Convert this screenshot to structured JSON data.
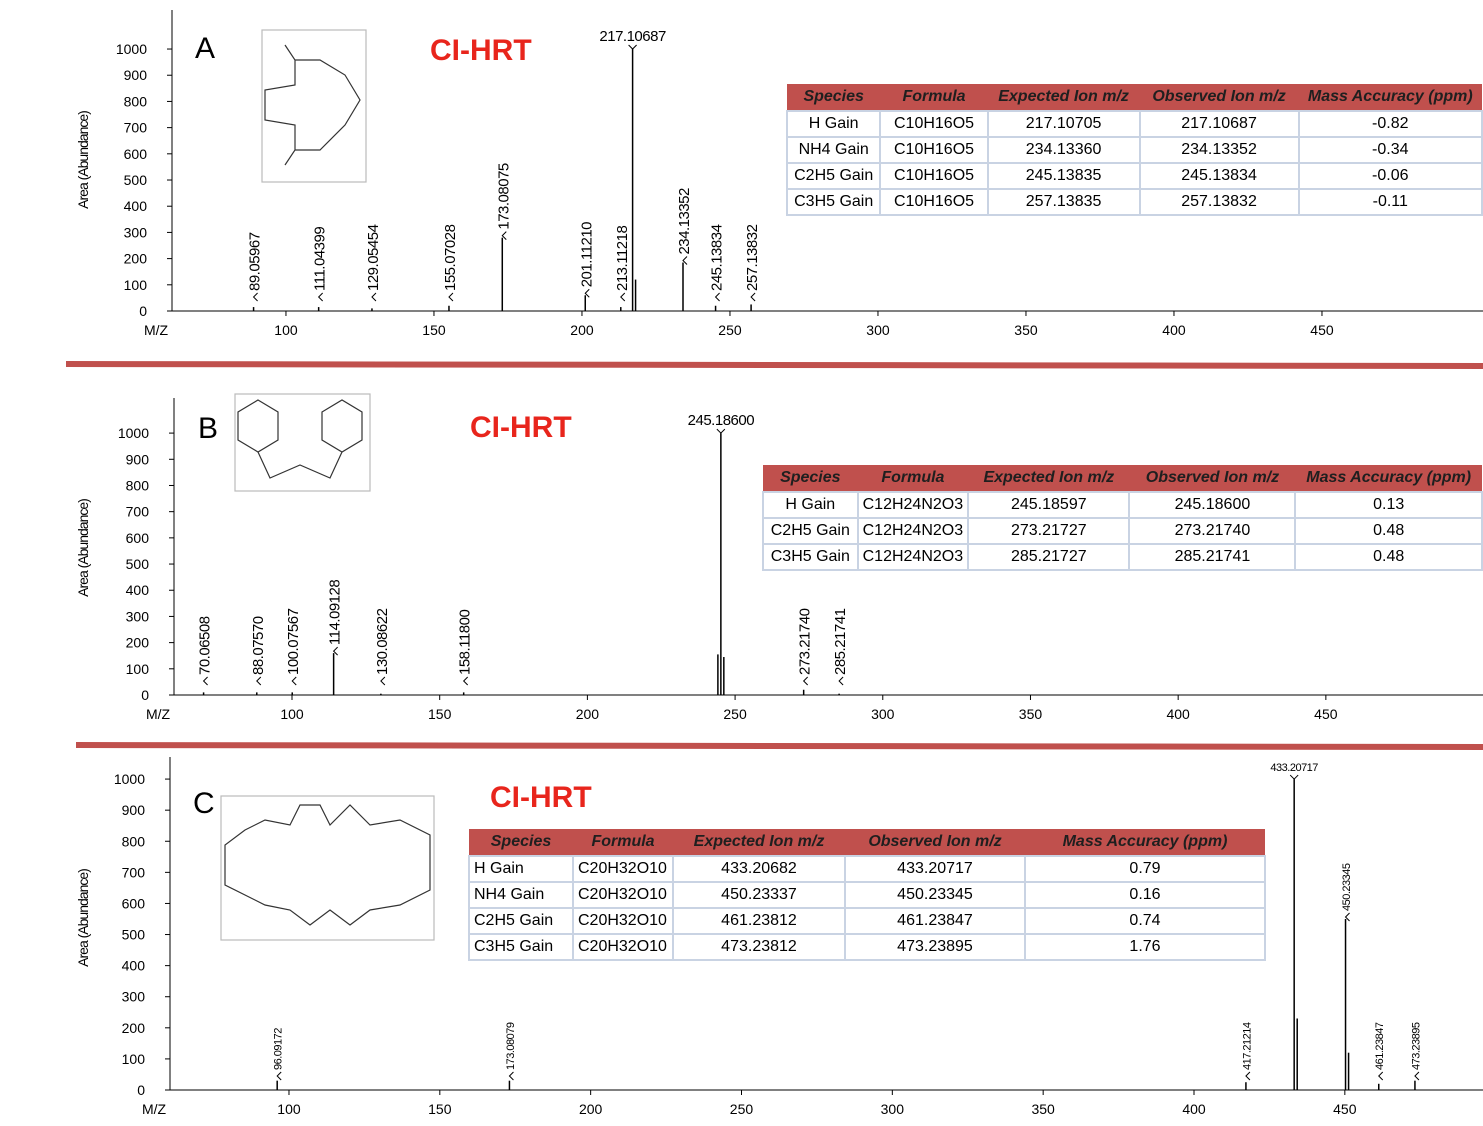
{
  "chart_data": [
    {
      "type": "bar",
      "panel": "A",
      "title": "CI-HRT",
      "x_label": "M/Z",
      "y_label": "Area (Abundance)",
      "color": "#000000",
      "x": [
        89.05967,
        111.04399,
        129.05454,
        155.07028,
        173.08075,
        201.1121,
        213.11218,
        217.10687,
        218.11,
        234.13352,
        245.13834,
        257.13832
      ],
      "x_labels": [
        "89.05967",
        "111.04399",
        "129.05454",
        "155.07028",
        "173.08075",
        "201.11210",
        "213.11218",
        "217.10687",
        null,
        "234.13352",
        "245.13834",
        "257.13832"
      ],
      "values": [
        15,
        15,
        10,
        20,
        280,
        60,
        15,
        1000,
        120,
        185,
        20,
        25
      ],
      "xlim": [
        61.5,
        504.4
      ],
      "ylim": [
        0,
        1149
      ],
      "xticks": [
        100,
        150,
        200,
        250,
        300,
        350,
        400,
        450
      ],
      "yticks": [
        0,
        100,
        200,
        300,
        400,
        500,
        600,
        700,
        800,
        900,
        1000
      ],
      "table": {
        "columns": [
          "Species",
          "Formula",
          "Expected Ion m/z",
          "Observed Ion m/z",
          "Mass Accuracy (ppm)"
        ],
        "rows": [
          [
            "H Gain",
            "C10H16O5",
            "217.10705",
            "217.10687",
            "-0.82"
          ],
          [
            "NH4 Gain",
            "C10H16O5",
            "234.13360",
            "234.13352",
            "-0.34"
          ],
          [
            "C2H5 Gain",
            "C10H16O5",
            "245.13835",
            "245.13834",
            "-0.06"
          ],
          [
            "C3H5 Gain",
            "C10H16O5",
            "257.13835",
            "257.13832",
            "-0.11"
          ]
        ]
      }
    },
    {
      "type": "bar",
      "panel": "B",
      "title": "CI-HRT",
      "x_label": "M/Z",
      "y_label": "Area (Abundance)",
      "color": "#000000",
      "x": [
        70.06508,
        88.0757,
        100.07567,
        114.09128,
        130.08622,
        158.118,
        244.18,
        245.186,
        246.19,
        273.2174,
        285.21741
      ],
      "x_labels": [
        "70.06508",
        "88.07570",
        "100.07567",
        "114.09128",
        "130.08622",
        "158.11800",
        null,
        "245.18600",
        null,
        "273.21740",
        "285.21741"
      ],
      "values": [
        10,
        10,
        10,
        160,
        5,
        10,
        155,
        1000,
        145,
        20,
        5
      ],
      "xlim": [
        60.05,
        503.2
      ],
      "ylim": [
        0,
        1134
      ],
      "xticks": [
        100,
        150,
        200,
        250,
        300,
        350,
        400,
        450
      ],
      "yticks": [
        0,
        100,
        200,
        300,
        400,
        500,
        600,
        700,
        800,
        900,
        1000
      ],
      "table": {
        "columns": [
          "Species",
          "Formula",
          "Expected Ion m/z",
          "Observed Ion m/z",
          "Mass Accuracy (ppm)"
        ],
        "rows": [
          [
            "H Gain",
            "C12H24N2O3",
            "245.18597",
            "245.18600",
            "0.13"
          ],
          [
            "C2H5 Gain",
            "C12H24N2O3",
            "273.21727",
            "273.21740",
            "0.48"
          ],
          [
            "C3H5 Gain",
            "C12H24N2O3",
            "285.21727",
            "285.21741",
            "0.48"
          ]
        ]
      }
    },
    {
      "type": "bar",
      "panel": "C",
      "title": "CI-HRT",
      "x_label": "M/Z",
      "y_label": "Area (Abundance)",
      "color": "#000000",
      "x": [
        96.09172,
        173.08079,
        417.21214,
        433.20717,
        434.21,
        450.23345,
        451.24,
        461.23847,
        473.23895
      ],
      "x_labels": [
        "96.09172",
        "173.08079",
        "417.21214",
        "433.20717",
        null,
        "450.23345",
        null,
        "461.23847",
        "473.23895"
      ],
      "values": [
        30,
        30,
        25,
        1000,
        230,
        550,
        120,
        20,
        30
      ],
      "xlim": [
        60.56,
        495.8
      ],
      "ylim": [
        0,
        1071
      ],
      "xticks": [
        100,
        150,
        200,
        250,
        300,
        350,
        400,
        450
      ],
      "yticks": [
        0,
        100,
        200,
        300,
        400,
        500,
        600,
        700,
        800,
        900,
        1000
      ],
      "table": {
        "columns": [
          "Species",
          "Formula",
          "Expected Ion m/z",
          "Observed Ion m/z",
          "Mass Accuracy (ppm)"
        ],
        "rows": [
          [
            "H Gain",
            "C20H32O10",
            "433.20682",
            "433.20717",
            "0.79"
          ],
          [
            "NH4 Gain",
            "C20H32O10",
            "450.23337",
            "450.23345",
            "0.16"
          ],
          [
            "C2H5 Gain",
            "C20H32O10",
            "461.23812",
            "461.23847",
            "0.74"
          ],
          [
            "C3H5 Gain",
            "C20H32O10",
            "473.23812",
            "473.23895",
            "1.76"
          ]
        ]
      }
    }
  ]
}
